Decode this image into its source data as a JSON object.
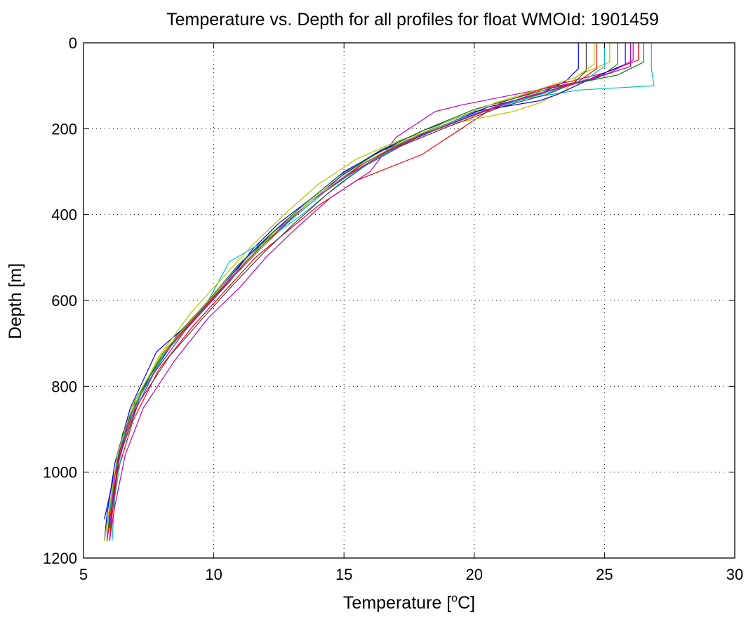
{
  "chart_data": {
    "type": "line",
    "title": "Temperature vs. Depth for all profiles for float WMOId: 1901459",
    "xlabel_prefix": "Temperature [",
    "xlabel_sup": "o",
    "xlabel_suffix": "C]",
    "ylabel": "Depth [m]",
    "xlim": [
      5,
      30
    ],
    "ylim": [
      0,
      1200
    ],
    "y_reversed": true,
    "grid": true,
    "xticks": [
      "5",
      "10",
      "15",
      "20",
      "25",
      "30"
    ],
    "yticks": [
      "0",
      "200",
      "400",
      "600",
      "800",
      "1000",
      "1200"
    ],
    "x_tick_values": [
      5,
      10,
      15,
      20,
      25,
      30
    ],
    "y_tick_values": [
      0,
      200,
      400,
      600,
      800,
      1000,
      1200
    ],
    "colors": [
      "#0000ff",
      "#008000",
      "#ff0000",
      "#00bfbf",
      "#bf00bf",
      "#bfbf00",
      "#404040"
    ],
    "series": [
      {
        "color": "#0000ff",
        "points": [
          [
            24.0,
            0
          ],
          [
            24.0,
            60
          ],
          [
            23.5,
            90
          ],
          [
            22.5,
            120
          ],
          [
            20.5,
            150
          ],
          [
            18.5,
            200
          ],
          [
            16.5,
            250
          ],
          [
            15.0,
            300
          ],
          [
            13.8,
            360
          ],
          [
            12.5,
            420
          ],
          [
            11.5,
            480
          ],
          [
            10.5,
            560
          ],
          [
            9.3,
            640
          ],
          [
            7.8,
            720
          ],
          [
            6.8,
            850
          ],
          [
            6.2,
            980
          ],
          [
            5.9,
            1100
          ],
          [
            5.8,
            1160
          ]
        ]
      },
      {
        "color": "#008000",
        "points": [
          [
            25.5,
            0
          ],
          [
            25.5,
            50
          ],
          [
            24.8,
            80
          ],
          [
            23.0,
            110
          ],
          [
            21.0,
            145
          ],
          [
            19.0,
            190
          ],
          [
            17.0,
            240
          ],
          [
            15.5,
            290
          ],
          [
            14.2,
            350
          ],
          [
            13.0,
            410
          ],
          [
            11.8,
            470
          ],
          [
            10.7,
            550
          ],
          [
            9.5,
            630
          ],
          [
            8.2,
            710
          ],
          [
            7.0,
            830
          ],
          [
            6.4,
            950
          ],
          [
            6.1,
            1080
          ],
          [
            6.0,
            1160
          ]
        ]
      },
      {
        "color": "#ff0000",
        "points": [
          [
            26.3,
            0
          ],
          [
            26.3,
            40
          ],
          [
            25.0,
            70
          ],
          [
            23.0,
            100
          ],
          [
            21.0,
            140
          ],
          [
            20.0,
            180
          ],
          [
            18.0,
            260
          ],
          [
            15.5,
            320
          ],
          [
            14.0,
            380
          ],
          [
            12.8,
            440
          ],
          [
            11.6,
            500
          ],
          [
            10.4,
            580
          ],
          [
            9.2,
            660
          ],
          [
            7.9,
            760
          ],
          [
            6.9,
            880
          ],
          [
            6.3,
            1000
          ],
          [
            6.1,
            1100
          ],
          [
            6.0,
            1160
          ]
        ]
      },
      {
        "color": "#00bfbf",
        "points": [
          [
            26.8,
            0
          ],
          [
            26.8,
            60
          ],
          [
            26.9,
            100
          ],
          [
            24.0,
            110
          ],
          [
            22.0,
            130
          ],
          [
            20.0,
            165
          ],
          [
            18.0,
            210
          ],
          [
            16.2,
            270
          ],
          [
            14.8,
            330
          ],
          [
            13.4,
            400
          ],
          [
            12.0,
            460
          ],
          [
            10.6,
            510
          ],
          [
            9.7,
            610
          ],
          [
            8.4,
            700
          ],
          [
            7.2,
            820
          ],
          [
            6.5,
            940
          ],
          [
            6.2,
            1060
          ],
          [
            6.1,
            1160
          ]
        ]
      },
      {
        "color": "#bf00bf",
        "points": [
          [
            26.0,
            0
          ],
          [
            26.0,
            55
          ],
          [
            24.5,
            85
          ],
          [
            22.0,
            115
          ],
          [
            19.5,
            145
          ],
          [
            18.5,
            160
          ],
          [
            17.0,
            220
          ],
          [
            16.0,
            300
          ],
          [
            15.5,
            320
          ],
          [
            14.5,
            360
          ],
          [
            13.2,
            430
          ],
          [
            12.0,
            500
          ],
          [
            11.0,
            570
          ],
          [
            9.8,
            640
          ],
          [
            8.5,
            740
          ],
          [
            7.3,
            850
          ],
          [
            6.6,
            960
          ],
          [
            6.2,
            1080
          ],
          [
            6.0,
            1160
          ]
        ]
      },
      {
        "color": "#bfbf00",
        "points": [
          [
            25.2,
            0
          ],
          [
            25.2,
            45
          ],
          [
            24.0,
            75
          ],
          [
            23.5,
            110
          ],
          [
            22.5,
            140
          ],
          [
            21.5,
            160
          ],
          [
            19.0,
            190
          ],
          [
            17.0,
            230
          ],
          [
            15.5,
            270
          ],
          [
            14.0,
            330
          ],
          [
            12.7,
            400
          ],
          [
            11.5,
            470
          ],
          [
            10.3,
            550
          ],
          [
            9.1,
            630
          ],
          [
            7.9,
            730
          ],
          [
            6.9,
            850
          ],
          [
            6.3,
            970
          ],
          [
            6.0,
            1100
          ],
          [
            5.9,
            1160
          ]
        ]
      },
      {
        "color": "#404040",
        "points": [
          [
            24.3,
            0
          ],
          [
            24.3,
            65
          ],
          [
            23.8,
            95
          ],
          [
            22.8,
            120
          ],
          [
            21.0,
            150
          ],
          [
            19.0,
            195
          ],
          [
            17.2,
            240
          ],
          [
            15.7,
            290
          ],
          [
            14.4,
            350
          ],
          [
            13.1,
            420
          ],
          [
            11.9,
            490
          ],
          [
            10.8,
            560
          ],
          [
            9.6,
            640
          ],
          [
            8.3,
            730
          ],
          [
            7.1,
            840
          ],
          [
            6.4,
            960
          ],
          [
            6.1,
            1080
          ],
          [
            5.9,
            1160
          ]
        ]
      },
      {
        "color": "#0000ff",
        "points": [
          [
            25.8,
            0
          ],
          [
            25.8,
            50
          ],
          [
            24.6,
            80
          ],
          [
            23.2,
            120
          ],
          [
            22.5,
            135
          ],
          [
            20.0,
            160
          ],
          [
            18.0,
            205
          ],
          [
            16.3,
            255
          ],
          [
            14.9,
            310
          ],
          [
            13.6,
            375
          ],
          [
            12.3,
            440
          ],
          [
            11.1,
            510
          ],
          [
            10.0,
            590
          ],
          [
            8.8,
            670
          ],
          [
            7.6,
            770
          ],
          [
            6.7,
            880
          ],
          [
            6.2,
            1000
          ],
          [
            5.8,
            1110
          ]
        ]
      },
      {
        "color": "#008000",
        "points": [
          [
            26.5,
            0
          ],
          [
            26.5,
            45
          ],
          [
            25.5,
            75
          ],
          [
            23.0,
            105
          ],
          [
            21.5,
            130
          ],
          [
            20.0,
            155
          ],
          [
            18.2,
            200
          ],
          [
            16.4,
            250
          ],
          [
            14.8,
            310
          ],
          [
            13.4,
            380
          ],
          [
            12.1,
            450
          ],
          [
            10.9,
            520
          ],
          [
            9.8,
            600
          ],
          [
            8.6,
            680
          ],
          [
            7.4,
            790
          ],
          [
            6.5,
            910
          ],
          [
            6.1,
            1040
          ],
          [
            5.9,
            1160
          ]
        ]
      },
      {
        "color": "#ff0000",
        "points": [
          [
            24.7,
            0
          ],
          [
            24.7,
            60
          ],
          [
            24.0,
            90
          ],
          [
            22.7,
            115
          ],
          [
            21.3,
            140
          ],
          [
            19.5,
            180
          ],
          [
            17.6,
            225
          ],
          [
            15.9,
            275
          ],
          [
            14.5,
            335
          ],
          [
            13.2,
            400
          ],
          [
            11.9,
            470
          ],
          [
            10.7,
            545
          ],
          [
            9.5,
            625
          ],
          [
            8.2,
            715
          ],
          [
            7.1,
            830
          ],
          [
            6.4,
            950
          ],
          [
            6.1,
            1070
          ],
          [
            5.9,
            1160
          ]
        ]
      },
      {
        "color": "#00bfbf",
        "points": [
          [
            25.0,
            0
          ],
          [
            25.0,
            55
          ],
          [
            24.3,
            85
          ],
          [
            22.9,
            115
          ],
          [
            21.0,
            145
          ],
          [
            19.2,
            185
          ],
          [
            17.3,
            235
          ],
          [
            15.8,
            285
          ],
          [
            14.3,
            345
          ],
          [
            13.0,
            410
          ],
          [
            11.8,
            480
          ],
          [
            10.6,
            555
          ],
          [
            9.4,
            635
          ],
          [
            8.1,
            725
          ],
          [
            7.0,
            840
          ],
          [
            6.3,
            960
          ],
          [
            6.0,
            1090
          ],
          [
            5.8,
            1160
          ]
        ]
      },
      {
        "color": "#bf00bf",
        "points": [
          [
            26.1,
            0
          ],
          [
            26.1,
            40
          ],
          [
            25.2,
            70
          ],
          [
            23.6,
            100
          ],
          [
            22.0,
            125
          ],
          [
            20.3,
            160
          ],
          [
            18.4,
            205
          ],
          [
            16.6,
            255
          ],
          [
            15.1,
            310
          ],
          [
            13.7,
            370
          ],
          [
            12.4,
            440
          ],
          [
            11.2,
            510
          ],
          [
            10.1,
            590
          ],
          [
            8.9,
            670
          ],
          [
            7.7,
            770
          ],
          [
            6.7,
            890
          ],
          [
            6.2,
            1010
          ],
          [
            6.0,
            1130
          ]
        ]
      },
      {
        "color": "#bfbf00",
        "points": [
          [
            24.6,
            0
          ],
          [
            24.6,
            50
          ],
          [
            23.9,
            80
          ],
          [
            22.4,
            110
          ],
          [
            20.8,
            140
          ],
          [
            18.9,
            185
          ],
          [
            17.1,
            235
          ],
          [
            15.6,
            285
          ],
          [
            14.2,
            345
          ],
          [
            12.9,
            410
          ],
          [
            11.7,
            480
          ],
          [
            10.5,
            555
          ],
          [
            9.3,
            635
          ],
          [
            8.0,
            725
          ],
          [
            6.9,
            840
          ],
          [
            6.3,
            960
          ],
          [
            6.0,
            1080
          ],
          [
            5.8,
            1160
          ]
        ]
      }
    ]
  }
}
